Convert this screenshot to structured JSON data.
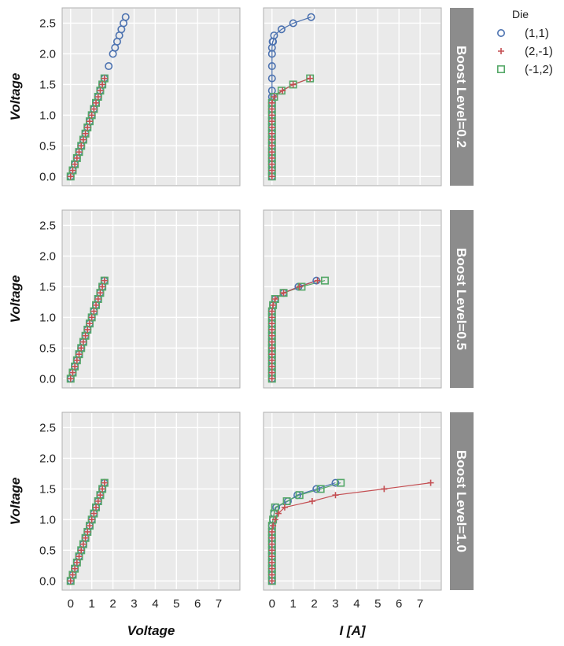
{
  "chart_data": {
    "type": "scatter",
    "layout": "faceted grid, 3 rows x 2 columns, facet strips on right",
    "grid": true,
    "legend_position": "top-right",
    "xlim": [
      -0.4,
      8.0
    ],
    "ylim": [
      -0.15,
      2.75
    ],
    "x_ticks": [
      0,
      1,
      2,
      3,
      4,
      5,
      6,
      7
    ],
    "y_ticks": [
      0.0,
      0.5,
      1.0,
      1.5,
      2.0,
      2.5
    ],
    "x_tick_labels": [
      "0",
      "1",
      "2",
      "3",
      "4",
      "5",
      "6",
      "7"
    ],
    "y_tick_labels": [
      "0.0",
      "0.5",
      "1.0",
      "1.5",
      "2.0",
      "2.5"
    ],
    "columns": [
      {
        "xlabel": "Voltage"
      },
      {
        "xlabel": "I [A]"
      }
    ],
    "ylabel": "Voltage",
    "legend": {
      "title": "Die",
      "entries": [
        {
          "label": "(1,1)",
          "marker": "circle",
          "color": "#4c72b0"
        },
        {
          "label": "(2,-1)",
          "marker": "plus",
          "color": "#c44e52"
        },
        {
          "label": "(-1,2)",
          "marker": "square",
          "color": "#55a868"
        }
      ]
    },
    "facets": [
      {
        "label": "Boost Level=0.2",
        "left": [
          {
            "name": "(1,1)",
            "x": [
              0,
              0.1,
              0.2,
              0.3,
              0.4,
              0.5,
              0.6,
              0.7,
              0.8,
              0.9,
              1.0,
              1.1,
              1.2,
              1.3,
              1.4,
              1.5,
              1.6,
              1.8,
              2.0,
              2.1,
              2.2,
              2.3,
              2.4,
              2.5,
              2.6
            ],
            "y": [
              0,
              0.1,
              0.2,
              0.3,
              0.4,
              0.5,
              0.6,
              0.7,
              0.8,
              0.9,
              1.0,
              1.1,
              1.2,
              1.3,
              1.4,
              1.5,
              1.6,
              1.8,
              2.0,
              2.1,
              2.2,
              2.3,
              2.4,
              2.5,
              2.6
            ]
          },
          {
            "name": "(2,-1)",
            "x": [
              0,
              0.1,
              0.2,
              0.3,
              0.4,
              0.5,
              0.6,
              0.7,
              0.8,
              0.9,
              1.0,
              1.1,
              1.2,
              1.3,
              1.4,
              1.5,
              1.6
            ],
            "y": [
              0,
              0.1,
              0.2,
              0.3,
              0.4,
              0.5,
              0.6,
              0.7,
              0.8,
              0.9,
              1.0,
              1.1,
              1.2,
              1.3,
              1.4,
              1.5,
              1.6
            ]
          },
          {
            "name": "(-1,2)",
            "x": [
              0,
              0.1,
              0.2,
              0.3,
              0.4,
              0.5,
              0.6,
              0.7,
              0.8,
              0.9,
              1.0,
              1.1,
              1.2,
              1.3,
              1.4,
              1.5,
              1.6
            ],
            "y": [
              0,
              0.1,
              0.2,
              0.3,
              0.4,
              0.5,
              0.6,
              0.7,
              0.8,
              0.9,
              1.0,
              1.1,
              1.2,
              1.3,
              1.4,
              1.5,
              1.6
            ]
          }
        ],
        "right": [
          {
            "name": "(1,1)",
            "x": [
              0,
              0,
              0,
              0,
              0,
              0,
              0,
              0,
              0,
              0,
              0,
              0,
              0,
              0,
              0,
              0,
              0,
              0,
              0,
              0.03,
              0.05,
              0.1,
              0.45,
              1.0,
              1.85
            ],
            "y": [
              0,
              0.1,
              0.2,
              0.3,
              0.4,
              0.5,
              0.6,
              0.7,
              0.8,
              0.9,
              1.0,
              1.1,
              1.2,
              1.3,
              1.4,
              1.6,
              1.8,
              2.0,
              2.1,
              2.2,
              2.2,
              2.3,
              2.4,
              2.5,
              2.6
            ]
          },
          {
            "name": "(2,-1)",
            "x": [
              0,
              0,
              0,
              0,
              0,
              0,
              0,
              0,
              0,
              0,
              0,
              0,
              0,
              0.1,
              0.5,
              1.0,
              1.8
            ],
            "y": [
              0,
              0.1,
              0.2,
              0.3,
              0.4,
              0.5,
              0.6,
              0.7,
              0.8,
              0.9,
              1.0,
              1.1,
              1.2,
              1.3,
              1.4,
              1.5,
              1.6
            ]
          },
          {
            "name": "(-1,2)",
            "x": [
              0,
              0,
              0,
              0,
              0,
              0,
              0,
              0,
              0,
              0,
              0,
              0,
              0,
              0.1,
              0.45,
              1.0,
              1.8
            ],
            "y": [
              0,
              0.1,
              0.2,
              0.3,
              0.4,
              0.5,
              0.6,
              0.7,
              0.8,
              0.9,
              1.0,
              1.1,
              1.2,
              1.3,
              1.4,
              1.5,
              1.6
            ]
          }
        ]
      },
      {
        "label": "Boost Level=0.5",
        "left": [
          {
            "name": "(1,1)",
            "x": [
              0,
              0.1,
              0.2,
              0.3,
              0.4,
              0.5,
              0.6,
              0.7,
              0.8,
              0.9,
              1.0,
              1.1,
              1.2,
              1.3,
              1.4,
              1.5,
              1.6
            ],
            "y": [
              0,
              0.1,
              0.2,
              0.3,
              0.4,
              0.5,
              0.6,
              0.7,
              0.8,
              0.9,
              1.0,
              1.1,
              1.2,
              1.3,
              1.4,
              1.5,
              1.6
            ]
          },
          {
            "name": "(2,-1)",
            "x": [
              0,
              0.1,
              0.2,
              0.3,
              0.4,
              0.5,
              0.6,
              0.7,
              0.8,
              0.9,
              1.0,
              1.1,
              1.2,
              1.3,
              1.4,
              1.5,
              1.6
            ],
            "y": [
              0,
              0.1,
              0.2,
              0.3,
              0.4,
              0.5,
              0.6,
              0.7,
              0.8,
              0.9,
              1.0,
              1.1,
              1.2,
              1.3,
              1.4,
              1.5,
              1.6
            ]
          },
          {
            "name": "(-1,2)",
            "x": [
              0,
              0.1,
              0.2,
              0.3,
              0.4,
              0.5,
              0.6,
              0.7,
              0.8,
              0.9,
              1.0,
              1.1,
              1.2,
              1.3,
              1.4,
              1.5,
              1.6
            ],
            "y": [
              0,
              0.1,
              0.2,
              0.3,
              0.4,
              0.5,
              0.6,
              0.7,
              0.8,
              0.9,
              1.0,
              1.1,
              1.2,
              1.3,
              1.4,
              1.5,
              1.6
            ]
          }
        ],
        "right": [
          {
            "name": "(1,1)",
            "x": [
              0,
              0,
              0,
              0,
              0,
              0,
              0,
              0,
              0,
              0,
              0,
              0,
              0.05,
              0.15,
              0.55,
              1.25,
              2.1
            ],
            "y": [
              0,
              0.1,
              0.2,
              0.3,
              0.4,
              0.5,
              0.6,
              0.7,
              0.8,
              0.9,
              1.0,
              1.1,
              1.2,
              1.3,
              1.4,
              1.5,
              1.6
            ]
          },
          {
            "name": "(2,-1)",
            "x": [
              0,
              0,
              0,
              0,
              0,
              0,
              0,
              0,
              0,
              0,
              0,
              0,
              0.05,
              0.15,
              0.55,
              1.3,
              2.15
            ],
            "y": [
              0,
              0.1,
              0.2,
              0.3,
              0.4,
              0.5,
              0.6,
              0.7,
              0.8,
              0.9,
              1.0,
              1.1,
              1.2,
              1.3,
              1.4,
              1.5,
              1.6
            ]
          },
          {
            "name": "(-1,2)",
            "x": [
              0,
              0,
              0,
              0,
              0,
              0,
              0,
              0,
              0,
              0,
              0,
              0,
              0.05,
              0.15,
              0.55,
              1.4,
              2.5
            ],
            "y": [
              0,
              0.1,
              0.2,
              0.3,
              0.4,
              0.5,
              0.6,
              0.7,
              0.8,
              0.9,
              1.0,
              1.1,
              1.2,
              1.3,
              1.4,
              1.5,
              1.6
            ]
          }
        ]
      },
      {
        "label": "Boost Level=1.0",
        "left": [
          {
            "name": "(1,1)",
            "x": [
              0,
              0.1,
              0.2,
              0.3,
              0.4,
              0.5,
              0.6,
              0.7,
              0.8,
              0.9,
              1.0,
              1.1,
              1.2,
              1.3,
              1.4,
              1.5,
              1.6
            ],
            "y": [
              0,
              0.1,
              0.2,
              0.3,
              0.4,
              0.5,
              0.6,
              0.7,
              0.8,
              0.9,
              1.0,
              1.1,
              1.2,
              1.3,
              1.4,
              1.5,
              1.6
            ]
          },
          {
            "name": "(2,-1)",
            "x": [
              0,
              0.1,
              0.2,
              0.3,
              0.4,
              0.5,
              0.6,
              0.7,
              0.8,
              0.9,
              1.0,
              1.1,
              1.2,
              1.3,
              1.4,
              1.5,
              1.6
            ],
            "y": [
              0,
              0.1,
              0.2,
              0.3,
              0.4,
              0.5,
              0.6,
              0.7,
              0.8,
              0.9,
              1.0,
              1.1,
              1.2,
              1.3,
              1.4,
              1.5,
              1.6
            ]
          },
          {
            "name": "(-1,2)",
            "x": [
              0,
              0.1,
              0.2,
              0.3,
              0.4,
              0.5,
              0.6,
              0.7,
              0.8,
              0.9,
              1.0,
              1.1,
              1.2,
              1.3,
              1.4,
              1.5,
              1.6
            ],
            "y": [
              0,
              0.1,
              0.2,
              0.3,
              0.4,
              0.5,
              0.6,
              0.7,
              0.8,
              0.9,
              1.0,
              1.1,
              1.2,
              1.3,
              1.4,
              1.5,
              1.6
            ]
          }
        ],
        "right": [
          {
            "name": "(1,1)",
            "x": [
              0,
              0,
              0,
              0,
              0,
              0,
              0,
              0,
              0,
              0,
              0.05,
              0.1,
              0.2,
              0.75,
              1.2,
              2.1,
              3.0
            ],
            "y": [
              0,
              0.1,
              0.2,
              0.3,
              0.4,
              0.5,
              0.6,
              0.7,
              0.8,
              0.9,
              1.0,
              1.1,
              1.2,
              1.3,
              1.4,
              1.5,
              1.6
            ]
          },
          {
            "name": "(2,-1)",
            "x": [
              0,
              0,
              0,
              0,
              0,
              0,
              0,
              0,
              0,
              0.05,
              0.15,
              0.3,
              0.6,
              1.9,
              3.0,
              5.3,
              7.5
            ],
            "y": [
              0,
              0.1,
              0.2,
              0.3,
              0.4,
              0.5,
              0.6,
              0.7,
              0.8,
              0.9,
              1.0,
              1.1,
              1.2,
              1.3,
              1.4,
              1.5,
              1.6
            ]
          },
          {
            "name": "(-1,2)",
            "x": [
              0,
              0,
              0,
              0,
              0,
              0,
              0,
              0,
              0,
              0,
              0.05,
              0.1,
              0.15,
              0.7,
              1.3,
              2.3,
              3.25
            ],
            "y": [
              0,
              0.1,
              0.2,
              0.3,
              0.4,
              0.5,
              0.6,
              0.7,
              0.8,
              0.9,
              1.0,
              1.1,
              1.2,
              1.3,
              1.4,
              1.5,
              1.6
            ]
          }
        ]
      }
    ]
  }
}
